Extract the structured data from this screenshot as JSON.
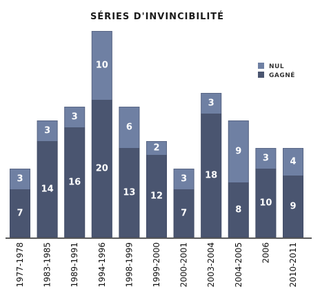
{
  "chart_data": {
    "type": "bar",
    "stacked": true,
    "title": "SÉRIES D'INVINCIBILITÉ",
    "xlabel": "",
    "ylabel": "",
    "ylim": [
      0,
      31
    ],
    "grid": false,
    "legend_position": "top-right",
    "categories": [
      "1977-1978",
      "1983-1985",
      "1989-1991",
      "1994-1996",
      "1998-1999",
      "1999-2000",
      "2000-2001",
      "2003-2004",
      "2004-2005",
      "2006",
      "2010-2011"
    ],
    "series": [
      {
        "name": "GAGNÉ",
        "color": "#4a5570",
        "values": [
          7,
          14,
          16,
          20,
          13,
          12,
          7,
          18,
          8,
          10,
          9
        ]
      },
      {
        "name": "NUL",
        "color": "#6f80a3",
        "values": [
          3,
          3,
          3,
          10,
          6,
          2,
          3,
          3,
          9,
          3,
          4
        ]
      }
    ]
  }
}
